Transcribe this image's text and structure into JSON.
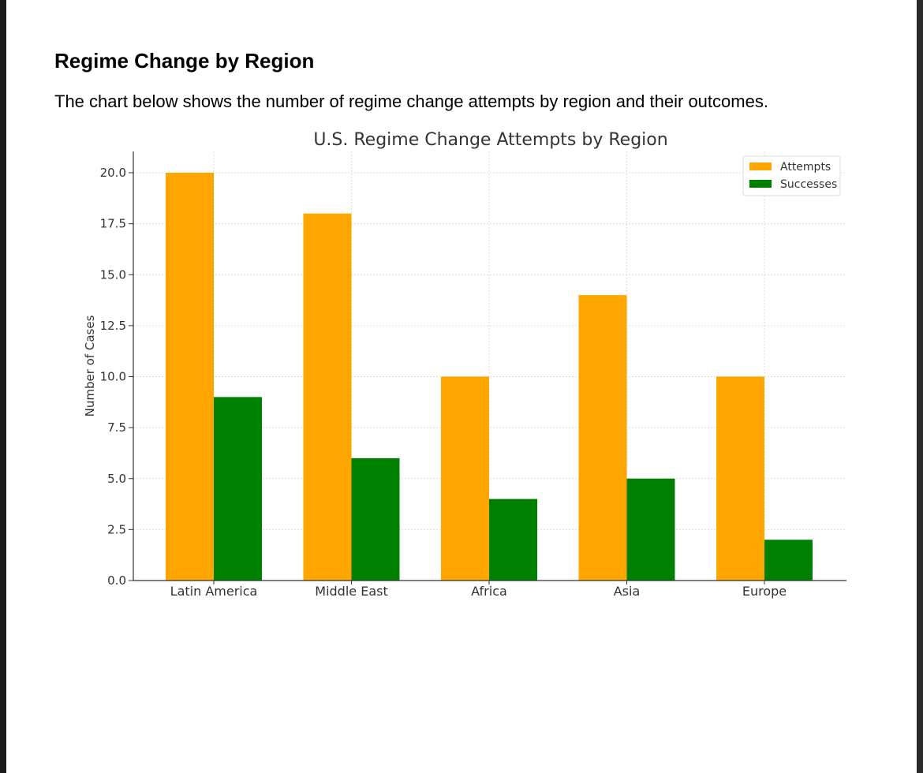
{
  "document": {
    "heading": "Regime Change by Region",
    "intro": "The chart below shows the number of regime change attempts by region and their outcomes."
  },
  "chart_data": {
    "type": "bar",
    "title": "U.S. Regime Change Attempts by Region",
    "xlabel": "",
    "ylabel": "Number of Cases",
    "categories": [
      "Latin America",
      "Middle East",
      "Africa",
      "Asia",
      "Europe"
    ],
    "series": [
      {
        "name": "Attempts",
        "values": [
          20,
          18,
          10,
          14,
          10
        ],
        "color": "#FFA500"
      },
      {
        "name": "Successes",
        "values": [
          9,
          6,
          4,
          5,
          2
        ],
        "color": "#008000"
      }
    ],
    "ylim": [
      0,
      20.0
    ],
    "yticks": [
      "0.0",
      "2.5",
      "5.0",
      "7.5",
      "10.0",
      "12.5",
      "15.0",
      "17.5",
      "20.0"
    ],
    "grid": true,
    "legend": "top-right"
  }
}
